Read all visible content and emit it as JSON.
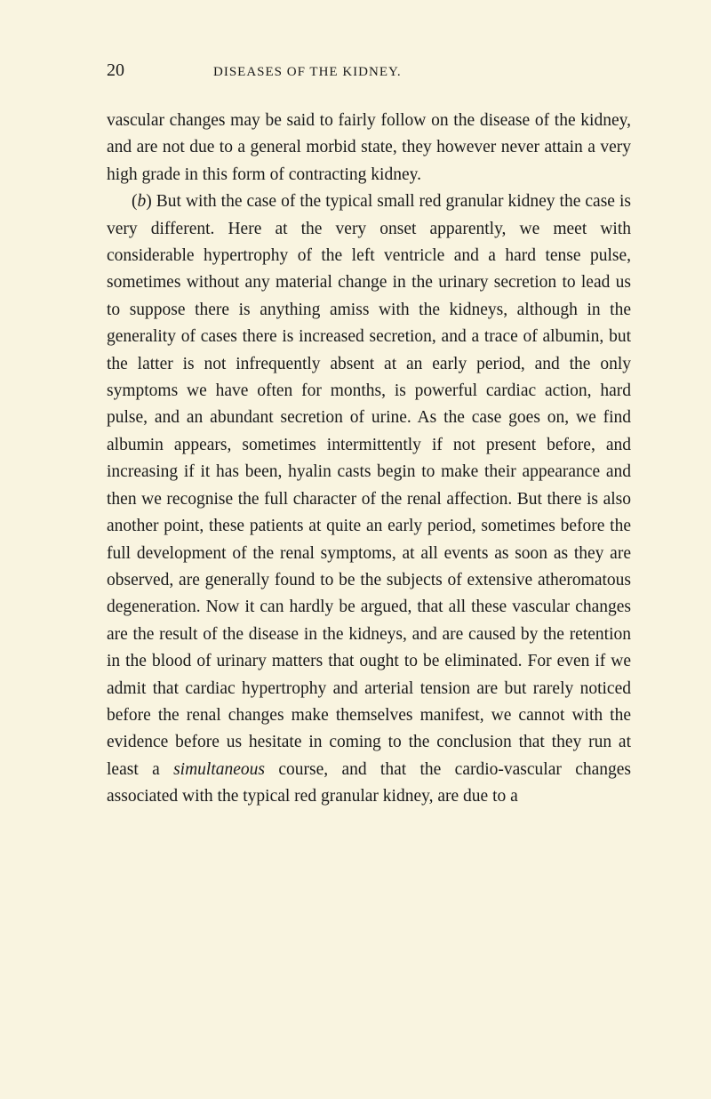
{
  "page_number": "20",
  "running_title": "DISEASES OF THE KIDNEY.",
  "paragraphs": {
    "p1": "vascular changes may be said to fairly follow on the disease of the kidney, and are not due to a general morbid state, they however never attain a very high grade in this form of contracting kidney.",
    "p2_prefix": "(",
    "p2_b": "b",
    "p2_mid": ") But with the case of the typical small red granular kidney the case is very different. Here at the very onset apparently, we meet with considerable hypertrophy of the left ventricle and a hard tense pulse, sometimes without any material change in the urinary secretion to lead us to suppose there is anything amiss with the kidneys, although in the generality of cases there is increased secretion, and a trace of albumin, but the latter is not infrequently absent at an early period, and the only symptoms we have often for months, is powerful cardiac action, hard pulse, and an abundant secretion of urine. As the case goes on, we find albumin appears, sometimes intermittently if not present before, and increasing if it has been, hyalin casts begin to make their appearance and then we recognise the full character of the renal affection. But there is also another point, these patients at quite an early period, sometimes before the full development of the renal symptoms, at all events as soon as they are observed, are generally found to be the subjects of extensive atheromatous degeneration. Now it can hardly be argued, that all these vascular changes are the result of the disease in the kidneys, and are caused by the retention in the blood of urinary matters that ought to be eliminated. For even if we admit that cardiac hypertrophy and arterial tension are but rarely noticed before the renal changes make themselves manifest, we cannot with the evidence before us hesitate in coming to the conclusion that they run at least a ",
    "p2_simul": "simultaneous",
    "p2_end": " course, and that the cardio-vascular changes associated with the typical red granular kidney, are due to a"
  },
  "colors": {
    "background": "#f9f4e0",
    "text": "#1a1a1a"
  },
  "typography": {
    "body_fontsize": 19.5,
    "line_height": 1.56,
    "page_number_fontsize": 20,
    "running_title_fontsize": 15
  }
}
